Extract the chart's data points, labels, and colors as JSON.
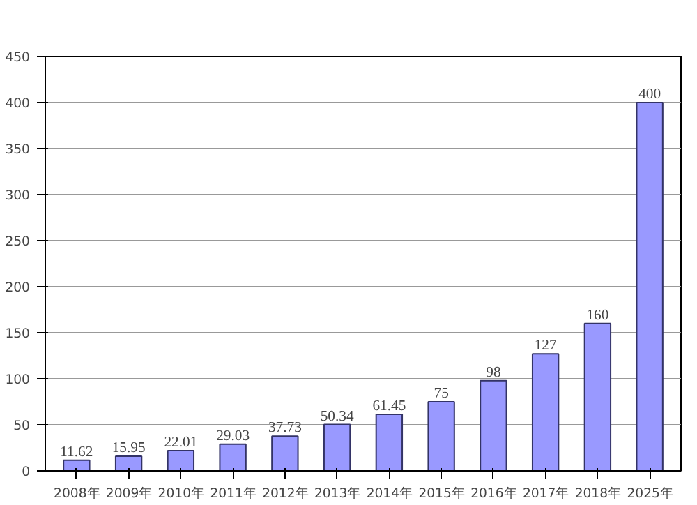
{
  "chart_data": {
    "type": "bar",
    "categories": [
      "2008年",
      "2009年",
      "2010年",
      "2011年",
      "2012年",
      "2013年",
      "2014年",
      "2015年",
      "2016年",
      "2017年",
      "2018年",
      "2025年"
    ],
    "values": [
      11.62,
      15.95,
      22.01,
      29.03,
      37.73,
      50.34,
      61.45,
      75,
      98,
      127,
      160,
      400
    ],
    "color": "#9999ff",
    "ylim": [
      0,
      450
    ],
    "yticks": [
      0,
      50,
      100,
      150,
      200,
      250,
      300,
      350,
      400,
      450
    ],
    "grid": "y",
    "data_labels": true
  }
}
